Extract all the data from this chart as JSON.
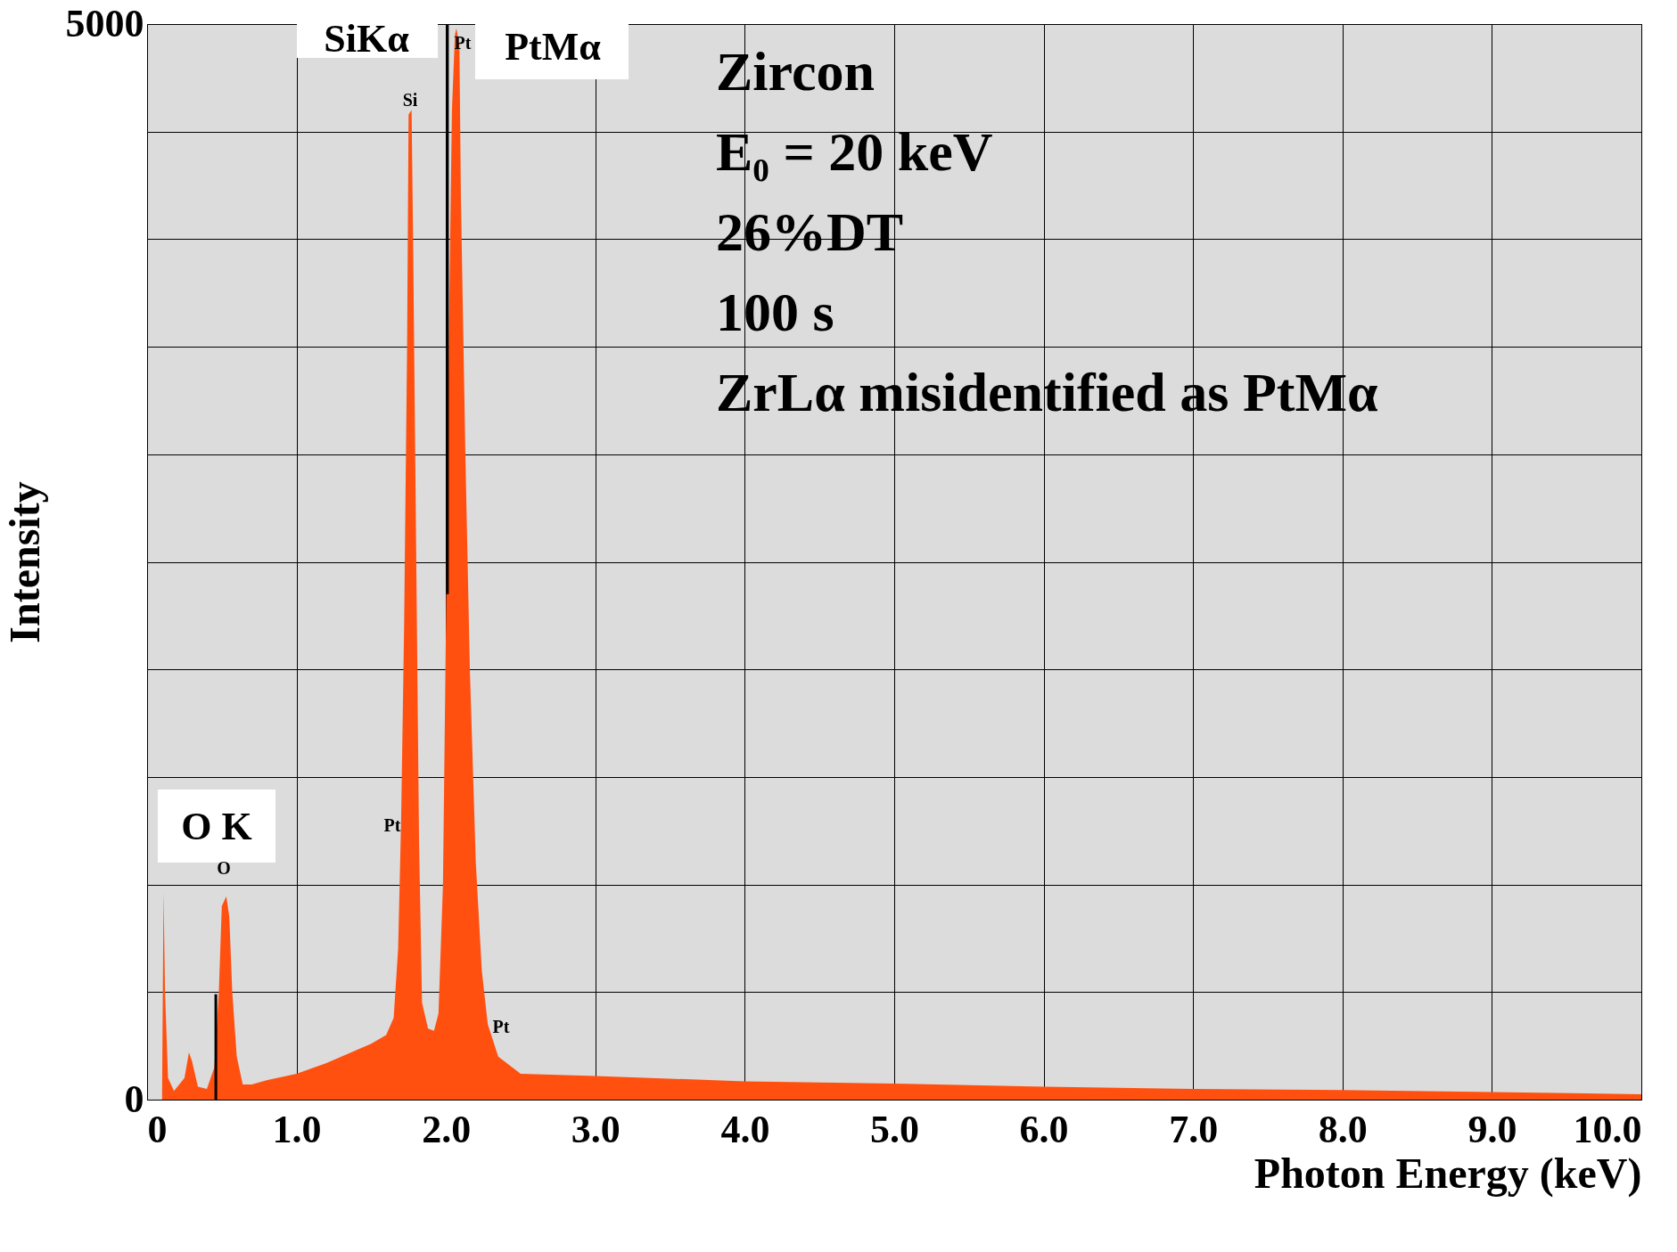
{
  "chart_data": {
    "type": "area",
    "xlabel": "Photon Energy (keV)",
    "ylabel": "Intensity",
    "xlim": [
      0,
      10
    ],
    "ylim": [
      0,
      5000
    ],
    "xticks": [
      0,
      {
        "value": 1,
        "label": "1.0"
      },
      {
        "value": 2,
        "label": "2.0"
      },
      {
        "value": 3,
        "label": "3.0"
      },
      {
        "value": 4,
        "label": "4.0"
      },
      {
        "value": 5,
        "label": "5.0"
      },
      {
        "value": 6,
        "label": "6.0"
      },
      {
        "value": 7,
        "label": "7.0"
      },
      {
        "value": 8,
        "label": "8.0"
      },
      {
        "value": 9,
        "label": "9.0"
      },
      {
        "value": 10,
        "label": "10.0"
      }
    ],
    "yticks": [
      0,
      {
        "value": 500,
        "label": null
      },
      {
        "value": 1000,
        "label": null
      },
      {
        "value": 1500,
        "label": null
      },
      {
        "value": 2000,
        "label": null
      },
      {
        "value": 2500,
        "label": null
      },
      {
        "value": 3000,
        "label": null
      },
      {
        "value": 3500,
        "label": null
      },
      {
        "value": 4000,
        "label": null
      },
      {
        "value": 4500,
        "label": null
      },
      5000
    ],
    "grid": true,
    "series": [
      {
        "color": "#ff5010",
        "x": [
          0.1,
          0.11,
          0.12,
          0.14,
          0.18,
          0.25,
          0.28,
          0.3,
          0.34,
          0.4,
          0.45,
          0.48,
          0.5,
          0.53,
          0.55,
          0.57,
          0.6,
          0.64,
          0.7,
          0.8,
          1.0,
          1.2,
          1.4,
          1.5,
          1.6,
          1.65,
          1.68,
          1.7,
          1.72,
          1.74,
          1.75,
          1.77,
          1.78,
          1.8,
          1.82,
          1.84,
          1.88,
          1.92,
          1.95,
          1.98,
          2.0,
          2.02,
          2.04,
          2.06,
          2.07,
          2.09,
          2.1,
          2.13,
          2.16,
          2.2,
          2.24,
          2.28,
          2.35,
          2.5,
          3.0,
          4.0,
          5.0,
          6.0,
          7.0,
          8.0,
          9.0,
          10.0
        ],
        "values": [
          0,
          960,
          500,
          100,
          40,
          100,
          220,
          180,
          60,
          50,
          150,
          500,
          900,
          945,
          850,
          500,
          200,
          70,
          70,
          90,
          120,
          170,
          230,
          260,
          300,
          380,
          700,
          1300,
          2200,
          3500,
          4580,
          4600,
          4000,
          2600,
          1200,
          450,
          330,
          320,
          400,
          1000,
          2200,
          3600,
          4600,
          4950,
          4980,
          4900,
          4200,
          3000,
          2000,
          1100,
          600,
          350,
          200,
          120,
          110,
          85,
          75,
          60,
          50,
          45,
          35,
          25
        ]
      },
      {
        "type": "line",
        "color": "#000000",
        "x": [
          0.46,
          0.46
        ],
        "values": [
          0,
          490
        ]
      },
      {
        "type": "line",
        "color": "#000000",
        "x": [
          2.01,
          2.01
        ],
        "values": [
          2350,
          5000
        ]
      }
    ],
    "annotations": [
      "SiKα",
      "PtMα",
      "O K",
      "Si",
      "Pt",
      "Pt",
      "Pt",
      "O",
      "Zircon",
      "E₀ = 20 keV",
      "26%DT",
      "100 s",
      "ZrLα misidentified as PtMα"
    ]
  }
}
